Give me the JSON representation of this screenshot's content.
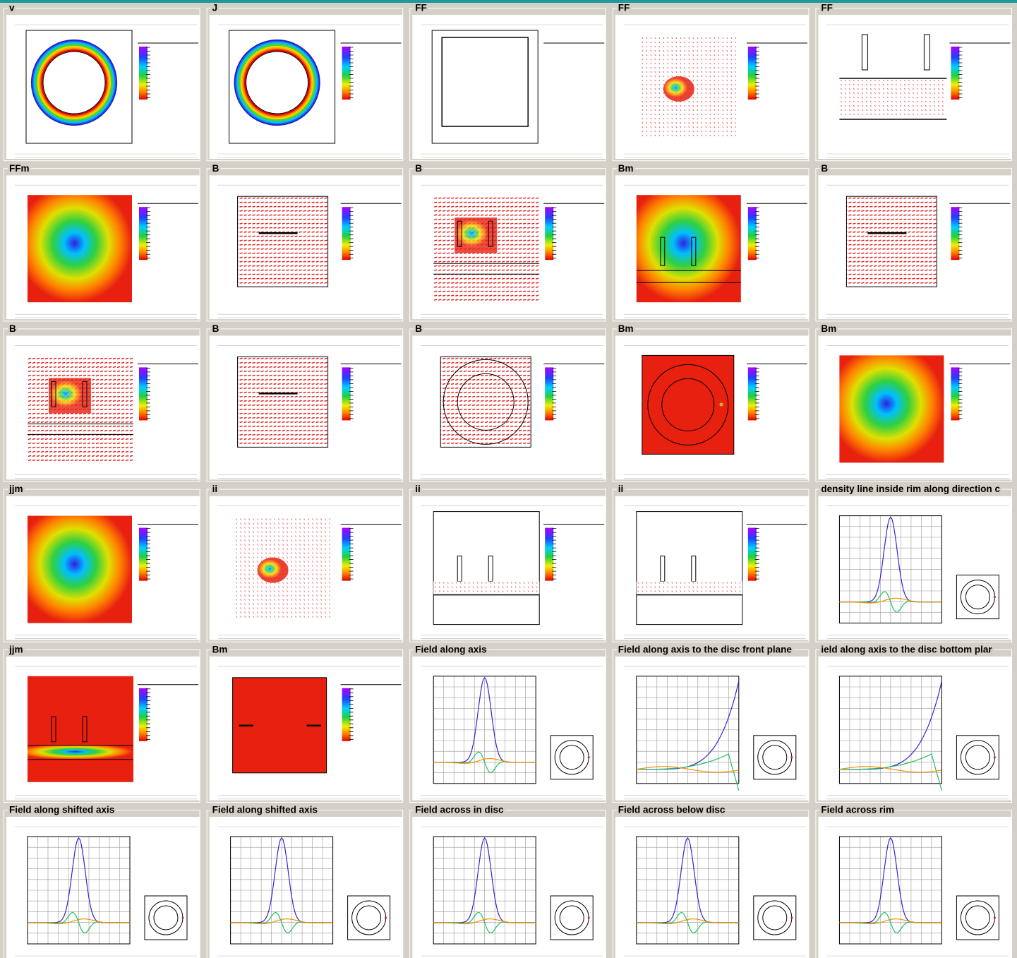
{
  "panels": [
    {
      "title": "v",
      "type": "ring"
    },
    {
      "title": "J",
      "type": "ring"
    },
    {
      "title": "FF",
      "type": "square"
    },
    {
      "title": "FF",
      "type": "field-spot"
    },
    {
      "title": "FF",
      "type": "field-slots"
    },
    {
      "title": "FFm",
      "type": "map"
    },
    {
      "title": "B",
      "type": "field"
    },
    {
      "title": "B",
      "type": "field-rainbow"
    },
    {
      "title": "Bm",
      "type": "map-bars"
    },
    {
      "title": "B",
      "type": "field"
    },
    {
      "title": "B",
      "type": "field-rainbow"
    },
    {
      "title": "B",
      "type": "field"
    },
    {
      "title": "B",
      "type": "field-rings"
    },
    {
      "title": "Bm",
      "type": "red-rings"
    },
    {
      "title": "Bm",
      "type": "map"
    },
    {
      "title": "jjm",
      "type": "map"
    },
    {
      "title": "ii",
      "type": "field-spot"
    },
    {
      "title": "ii",
      "type": "slots"
    },
    {
      "title": "ii",
      "type": "slots"
    },
    {
      "title": "density line inside rim along direction c",
      "type": "line"
    },
    {
      "title": "jjm",
      "type": "red-slots"
    },
    {
      "title": "Bm",
      "type": "red-box"
    },
    {
      "title": "Field along axis",
      "type": "line"
    },
    {
      "title": "Field along axis to the disc front plane",
      "type": "line-rise"
    },
    {
      "title": "ield along axis to the disc bottom plar",
      "type": "line-rise"
    },
    {
      "title": "Field along shifted axis",
      "type": "line"
    },
    {
      "title": "Field along shifted axis",
      "type": "line"
    },
    {
      "title": "Field across in disc",
      "type": "line"
    },
    {
      "title": "Field across below disc",
      "type": "line"
    },
    {
      "title": "Field across rim",
      "type": "line"
    }
  ]
}
